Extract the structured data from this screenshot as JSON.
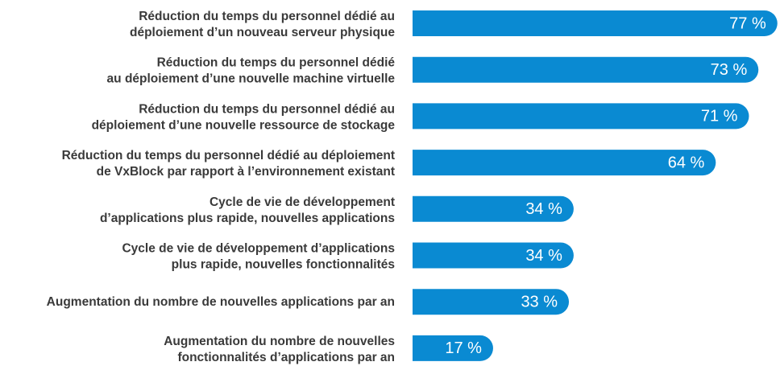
{
  "chart_data": {
    "type": "hbar",
    "color": "#0a8ad2",
    "categories": [
      [
        "Réduction du temps du personnel dédié au",
        "déploiement d’un nouveau serveur physique"
      ],
      [
        "Réduction du temps du personnel dédié",
        "au déploiement d’une nouvelle machine virtuelle"
      ],
      [
        "Réduction du temps du personnel dédié au",
        "déploiement d’une nouvelle ressource de stockage"
      ],
      [
        "Réduction du temps du personnel dédié au déploiement",
        "de VxBlock par rapport à l’environnement existant"
      ],
      [
        "Cycle de vie de développement",
        "d’applications plus rapide, nouvelles applications"
      ],
      [
        "Cycle de vie de développement d’applications",
        "plus rapide, nouvelles fonctionnalités"
      ],
      [
        "Augmentation du nombre de nouvelles applications par an"
      ],
      [
        "Augmentation du nombre de nouvelles",
        "fonctionnalités d’applications par an"
      ]
    ],
    "values": [
      77,
      73,
      71,
      64,
      34,
      34,
      33,
      17
    ],
    "value_labels": [
      "77 %",
      "73 %",
      "71 %",
      "64 %",
      "34 %",
      "34 %",
      "33 %",
      "17 %"
    ]
  }
}
